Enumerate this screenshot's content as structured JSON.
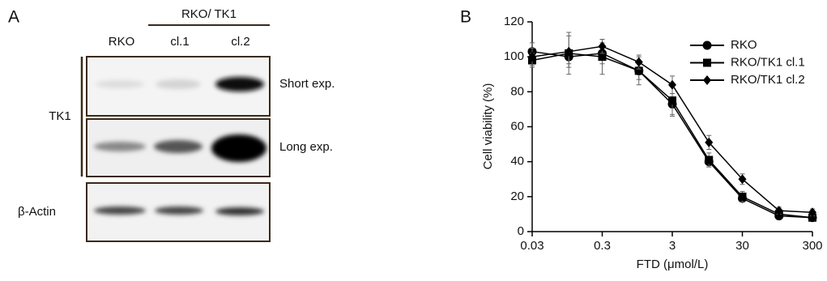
{
  "panel_a": {
    "label": "A",
    "group_label": "RKO/ TK1",
    "lanes": [
      "RKO",
      "cl.1",
      "cl.2"
    ],
    "protein_label": "TK1",
    "exposures": [
      "Short exp.",
      "Long exp."
    ],
    "loading_control": "β-Actin"
  },
  "chart_data": {
    "type": "line",
    "panel_label": "B",
    "xlabel": "FTD (μmol/L)",
    "ylabel": "Cell viability (%)",
    "x": [
      0.03,
      0.1,
      0.3,
      1,
      3,
      10,
      30,
      100,
      300
    ],
    "xscale": "log",
    "xlim": [
      0.03,
      300
    ],
    "xticks": [
      0.03,
      0.3,
      3,
      30,
      300
    ],
    "ylim": [
      0,
      120
    ],
    "yticks": [
      0,
      20,
      40,
      60,
      80,
      100,
      120
    ],
    "legend": "upper right",
    "series": [
      {
        "name": "RKO",
        "color": "#000000",
        "marker": "circle",
        "values": [
          103,
          100,
          102,
          92,
          73,
          40,
          19,
          9,
          8
        ],
        "errors": [
          5,
          4,
          6,
          5,
          6,
          3,
          2,
          2,
          2
        ]
      },
      {
        "name": "RKO/TK1 cl.1",
        "color": "#000000",
        "marker": "square",
        "values": [
          98,
          102,
          100,
          92,
          75,
          41,
          20,
          10,
          8
        ],
        "errors": [
          4,
          12,
          10,
          8,
          9,
          4,
          3,
          2,
          2
        ]
      },
      {
        "name": "RKO/TK1 cl.2",
        "color": "#000000",
        "marker": "diamond",
        "values": [
          100,
          103,
          106,
          97,
          84,
          51,
          30,
          12,
          11
        ],
        "errors": [
          5,
          9,
          4,
          4,
          5,
          4,
          3,
          2,
          2
        ]
      }
    ]
  }
}
